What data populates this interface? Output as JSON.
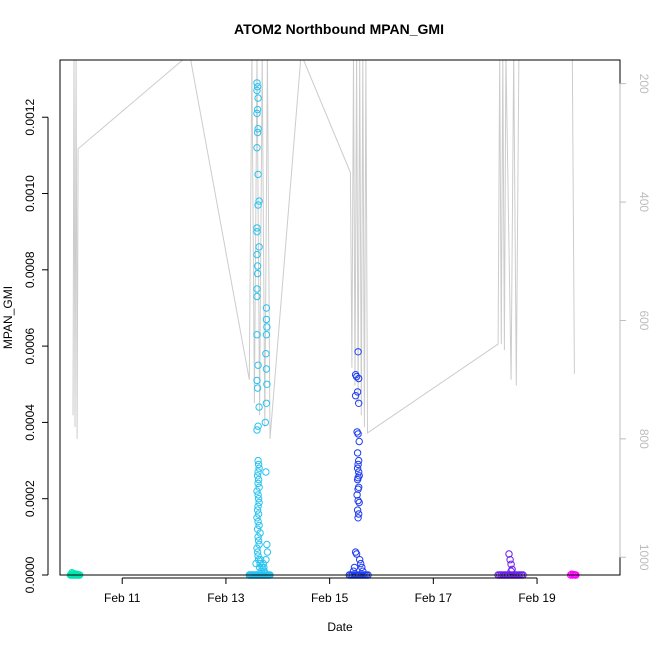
{
  "chart_data": {
    "type": "scatter",
    "title": "ATOM2 Northbound MPAN_GMI",
    "xlabel": "Date",
    "ylabel": "MPAN_GMI",
    "x_unit": "days",
    "xlim": [
      9.8,
      20.6
    ],
    "ylim": [
      0,
      0.00135
    ],
    "y_ticks": [
      0,
      0.0002,
      0.0004,
      0.0006,
      0.0008,
      0.001,
      0.0012
    ],
    "y_tick_labels": [
      "0.0000",
      "0.0002",
      "0.0004",
      "0.0006",
      "0.0008",
      "0.0010",
      "0.0012"
    ],
    "x_ticks": [
      11,
      13,
      15,
      17,
      19
    ],
    "x_tick_labels": [
      "Feb 11",
      "Feb 13",
      "Feb 15",
      "Feb 17",
      "Feb 19"
    ],
    "right_axis": {
      "label": "",
      "ylim": [
        1030,
        160
      ],
      "ticks": [
        200,
        400,
        600,
        800,
        1000
      ],
      "tick_labels": [
        "200",
        "400",
        "600",
        "800",
        "1000"
      ],
      "color": "#bdbdbd"
    },
    "profile_line": {
      "color": "#cccccc",
      "x": [
        10.05,
        10.07,
        10.09,
        10.11,
        10.13,
        10.15,
        12.3,
        13.45,
        13.5,
        13.55,
        13.6,
        13.65,
        13.7,
        13.75,
        13.8,
        13.85,
        14.45,
        15.4,
        15.43,
        15.46,
        15.49,
        15.52,
        15.55,
        15.58,
        15.61,
        15.64,
        15.67,
        15.7,
        15.73,
        18.25,
        18.28,
        18.31,
        18.34,
        18.37,
        18.4,
        18.5,
        18.55,
        18.6,
        18.65,
        19.68,
        19.72
      ],
      "y": [
        760,
        150,
        780,
        150,
        800,
        310,
        150,
        700,
        150,
        740,
        150,
        760,
        150,
        780,
        150,
        800,
        150,
        350,
        680,
        150,
        710,
        150,
        740,
        150,
        760,
        150,
        780,
        150,
        790,
        640,
        150,
        640,
        150,
        650,
        150,
        700,
        150,
        710,
        150,
        150,
        690
      ]
    },
    "series": [
      {
        "color": "#00e5b3",
        "x": [
          10.0,
          10.02,
          10.04,
          10.06,
          10.08,
          10.1,
          10.12,
          10.14,
          10.16,
          10.18,
          10.05,
          10.09,
          10.13,
          10.03,
          10.11
        ],
        "y": [
          0,
          0,
          0,
          0,
          0,
          0,
          0,
          0,
          0,
          0,
          4e-06,
          3e-06,
          2e-06,
          6e-06,
          1e-06
        ]
      },
      {
        "color": "#29c3f0",
        "x": [
          13.45,
          13.47,
          13.49,
          13.51,
          13.53,
          13.55,
          13.57,
          13.59,
          13.61,
          13.63,
          13.65,
          13.67,
          13.69,
          13.71,
          13.73,
          13.75,
          13.77,
          13.79,
          13.81,
          13.83,
          13.85,
          13.6,
          13.61,
          13.6,
          13.62,
          13.61,
          13.6,
          13.62,
          13.61,
          13.6,
          13.62,
          13.62,
          13.6,
          13.6,
          13.6,
          13.61,
          13.6,
          13.64,
          13.64,
          13.61,
          13.6,
          13.6,
          13.62,
          13.6,
          13.61,
          13.6,
          13.62,
          13.64,
          13.78,
          13.78,
          13.79,
          13.78,
          13.77,
          13.78,
          13.79,
          13.78,
          13.76,
          13.77,
          13.62,
          13.63,
          13.64,
          13.62,
          13.61,
          13.63,
          13.62,
          13.64,
          13.6,
          13.62,
          13.63,
          13.64,
          13.62,
          13.61,
          13.63,
          13.6,
          13.62,
          13.64,
          13.61,
          13.66,
          13.62,
          13.63,
          13.64,
          13.6,
          13.61,
          13.62,
          13.63,
          13.58,
          13.79,
          13.8,
          13.77,
          13.66,
          13.65,
          13.67,
          13.72,
          13.68,
          13.7,
          13.74,
          13.75,
          13.73
        ],
        "y": [
          0,
          0,
          0,
          0,
          0,
          0,
          0,
          0,
          0,
          0,
          0,
          0,
          0,
          0,
          0,
          0,
          0,
          0,
          0,
          0,
          0,
          0.00129,
          0.00128,
          0.00127,
          0.00125,
          0.00122,
          0.00121,
          0.00117,
          0.00116,
          0.00112,
          0.00105,
          0.00097,
          0.00091,
          0.0009,
          0.00084,
          0.00079,
          0.00075,
          0.00098,
          0.00086,
          0.00081,
          0.00073,
          0.00063,
          0.00055,
          0.00051,
          0.00049,
          0.00038,
          0.00039,
          0.00044,
          0.0007,
          0.00067,
          0.00065,
          0.00063,
          0.00058,
          0.00054,
          0.0005,
          0.00045,
          0.0004,
          0.00027,
          0.0003,
          0.00029,
          0.00028,
          0.00027,
          0.00026,
          0.00025,
          0.00024,
          0.00023,
          0.00022,
          0.00021,
          0.0002,
          0.00019,
          0.00018,
          0.00017,
          0.00016,
          0.00015,
          0.00014,
          0.00013,
          0.00012,
          0.00011,
          0.0001,
          9e-05,
          8e-05,
          7e-05,
          6e-05,
          5e-05,
          4e-05,
          3e-05,
          8e-05,
          6e-05,
          4e-05,
          3e-05,
          2e-05,
          4e-05,
          3e-05,
          1e-05,
          2e-05,
          1e-05,
          5e-06,
          2e-05
        ]
      },
      {
        "color": "#1f3df0",
        "x": [
          15.38,
          15.41,
          15.44,
          15.47,
          15.5,
          15.53,
          15.56,
          15.59,
          15.62,
          15.65,
          15.68,
          15.71,
          15.74,
          15.55,
          15.56,
          15.5,
          15.52,
          15.54,
          15.5,
          15.56,
          15.53,
          15.55,
          15.57,
          15.54,
          15.56,
          15.55,
          15.54,
          15.56,
          15.57,
          15.55,
          15.54,
          15.56,
          15.55,
          15.53,
          15.55,
          15.57,
          15.54,
          15.56,
          15.55,
          15.5,
          15.52,
          15.58,
          15.6,
          15.62,
          15.48,
          15.46,
          15.64
        ],
        "y": [
          0,
          0,
          0,
          0,
          0,
          0,
          0,
          0,
          0,
          0,
          0,
          0,
          0,
          0.000585,
          0.000515,
          0.000525,
          0.00052,
          0.00048,
          0.00047,
          0.00045,
          0.000375,
          0.00037,
          0.00035,
          0.00032,
          0.0003,
          0.00029,
          0.00028,
          0.00027,
          0.00026,
          0.000255,
          0.00025,
          0.00023,
          0.000225,
          0.00021,
          0.000195,
          0.00019,
          0.00017,
          0.00016,
          0.00015,
          6e-05,
          5.5e-05,
          4e-05,
          3e-05,
          2e-05,
          2e-05,
          1e-05,
          1e-05
        ]
      },
      {
        "color": "#6a1ef0",
        "x": [
          18.25,
          18.28,
          18.31,
          18.34,
          18.37,
          18.4,
          18.43,
          18.46,
          18.49,
          18.52,
          18.55,
          18.58,
          18.61,
          18.64,
          18.67,
          18.7,
          18.73,
          18.46,
          18.48,
          18.5,
          18.52,
          18.5
        ],
        "y": [
          0,
          0,
          0,
          0,
          0,
          0,
          0,
          0,
          0,
          0,
          0,
          0,
          0,
          0,
          0,
          0,
          0,
          5.5e-05,
          4e-05,
          2.8e-05,
          1.5e-05,
          1e-05
        ]
      },
      {
        "color": "#ff00ff",
        "x": [
          19.65,
          19.67,
          19.69,
          19.71,
          19.73,
          19.75
        ],
        "y": [
          0,
          2e-06,
          0,
          1e-06,
          0,
          0
        ]
      }
    ]
  }
}
